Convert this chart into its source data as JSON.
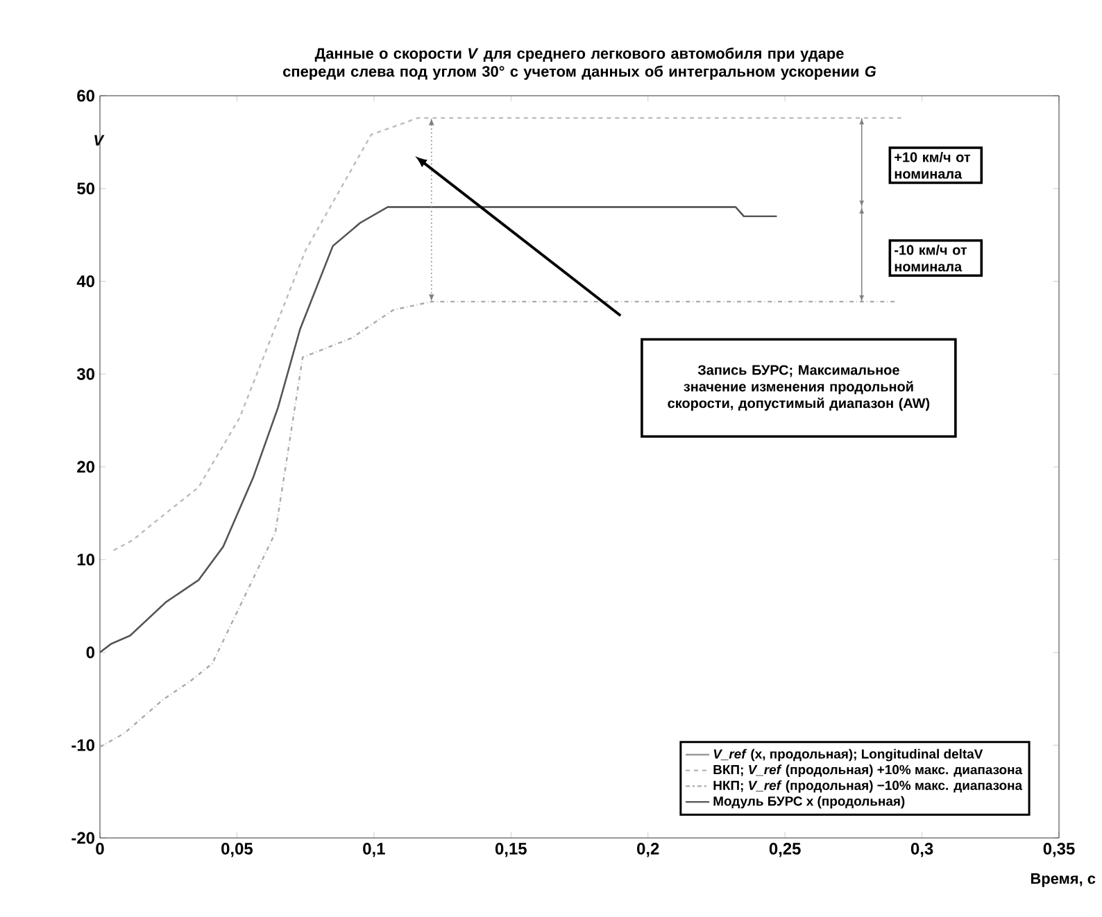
{
  "chart_data": {
    "type": "line",
    "title": "Данные о скорости *V* для среднего легкового автомобиля при ударе спереди слева под углом 30° с учетом данных об интегральном ускорении *G*",
    "xlabel": "Время, с",
    "ylabel": "V",
    "xlim": [
      0,
      0.35
    ],
    "ylim": [
      -20,
      60
    ],
    "xticks": [
      0,
      {
        "value": 0.05,
        "label": "0,05"
      },
      {
        "value": 0.1,
        "label": "0,1"
      },
      {
        "value": 0.15,
        "label": "0,15"
      },
      {
        "value": 0.2,
        "label": "0,2"
      },
      {
        "value": 0.25,
        "label": "0,25"
      },
      {
        "value": 0.3,
        "label": "0,3"
      },
      {
        "value": 0.35,
        "label": "0,35"
      }
    ],
    "yticks": [
      -20,
      -10,
      0,
      10,
      20,
      30,
      40,
      50,
      60
    ],
    "grid": false,
    "legend": "bottom right",
    "marker": "none",
    "series": [
      {
        "name": "*V_ref* (x, продольная); Longitudinal deltaV",
        "color": "#999999",
        "line_style": "solid",
        "x": [
          0,
          0.004,
          0.011,
          0.024,
          0.036,
          0.045,
          0.056,
          0.065,
          0.073,
          0.085,
          0.095,
          0.105,
          0.232,
          0.235,
          0.247
        ],
        "values": [
          0,
          0.9,
          1.8,
          5.4,
          7.8,
          11.4,
          18.9,
          26.4,
          34.8,
          43.8,
          46.3,
          48,
          48,
          47,
          47
        ]
      },
      {
        "name": "ВКП; *V_ref* (продольная) +10% макс. диапазона",
        "color": "#bbbbbb",
        "line_style": "dashed",
        "x": [
          0.005,
          0.012,
          0.019,
          0.036,
          0.051,
          0.075,
          0.099,
          0.116,
          0.294
        ],
        "values": [
          11,
          12.1,
          13.8,
          17.8,
          25.3,
          43.3,
          55.8,
          57.6,
          57.6
        ]
      },
      {
        "name": "НКП; *V_ref* (продольная) −10% макс. диапазона",
        "color": "#aaaaaa",
        "line_style": "dashdot",
        "x": [
          0,
          0.009,
          0.023,
          0.033,
          0.041,
          0.064,
          0.074,
          0.092,
          0.107,
          0.121,
          0.291
        ],
        "values": [
          -10.2,
          -8.7,
          -5.1,
          -3.1,
          -1.2,
          12.9,
          31.8,
          33.9,
          36.9,
          37.8,
          37.8
        ]
      },
      {
        "name": "Модуль БУРС x (продольная)",
        "color": "#555555",
        "line_style": "solid",
        "x": [
          0,
          0.004,
          0.011,
          0.024,
          0.036,
          0.045,
          0.056,
          0.065,
          0.073,
          0.085,
          0.095,
          0.105,
          0.232,
          0.235,
          0.247
        ],
        "values": [
          0,
          0.9,
          1.8,
          5.4,
          7.8,
          11.4,
          18.9,
          26.4,
          34.8,
          43.8,
          46.3,
          48,
          48,
          47,
          47
        ]
      }
    ],
    "annotations": [
      "+10 км/ч от номинала",
      "-10 км/ч от номинала",
      "Запись БУРС; Максимальное значение изменения продольной скорости, допустимый диапазон (AW)"
    ]
  }
}
